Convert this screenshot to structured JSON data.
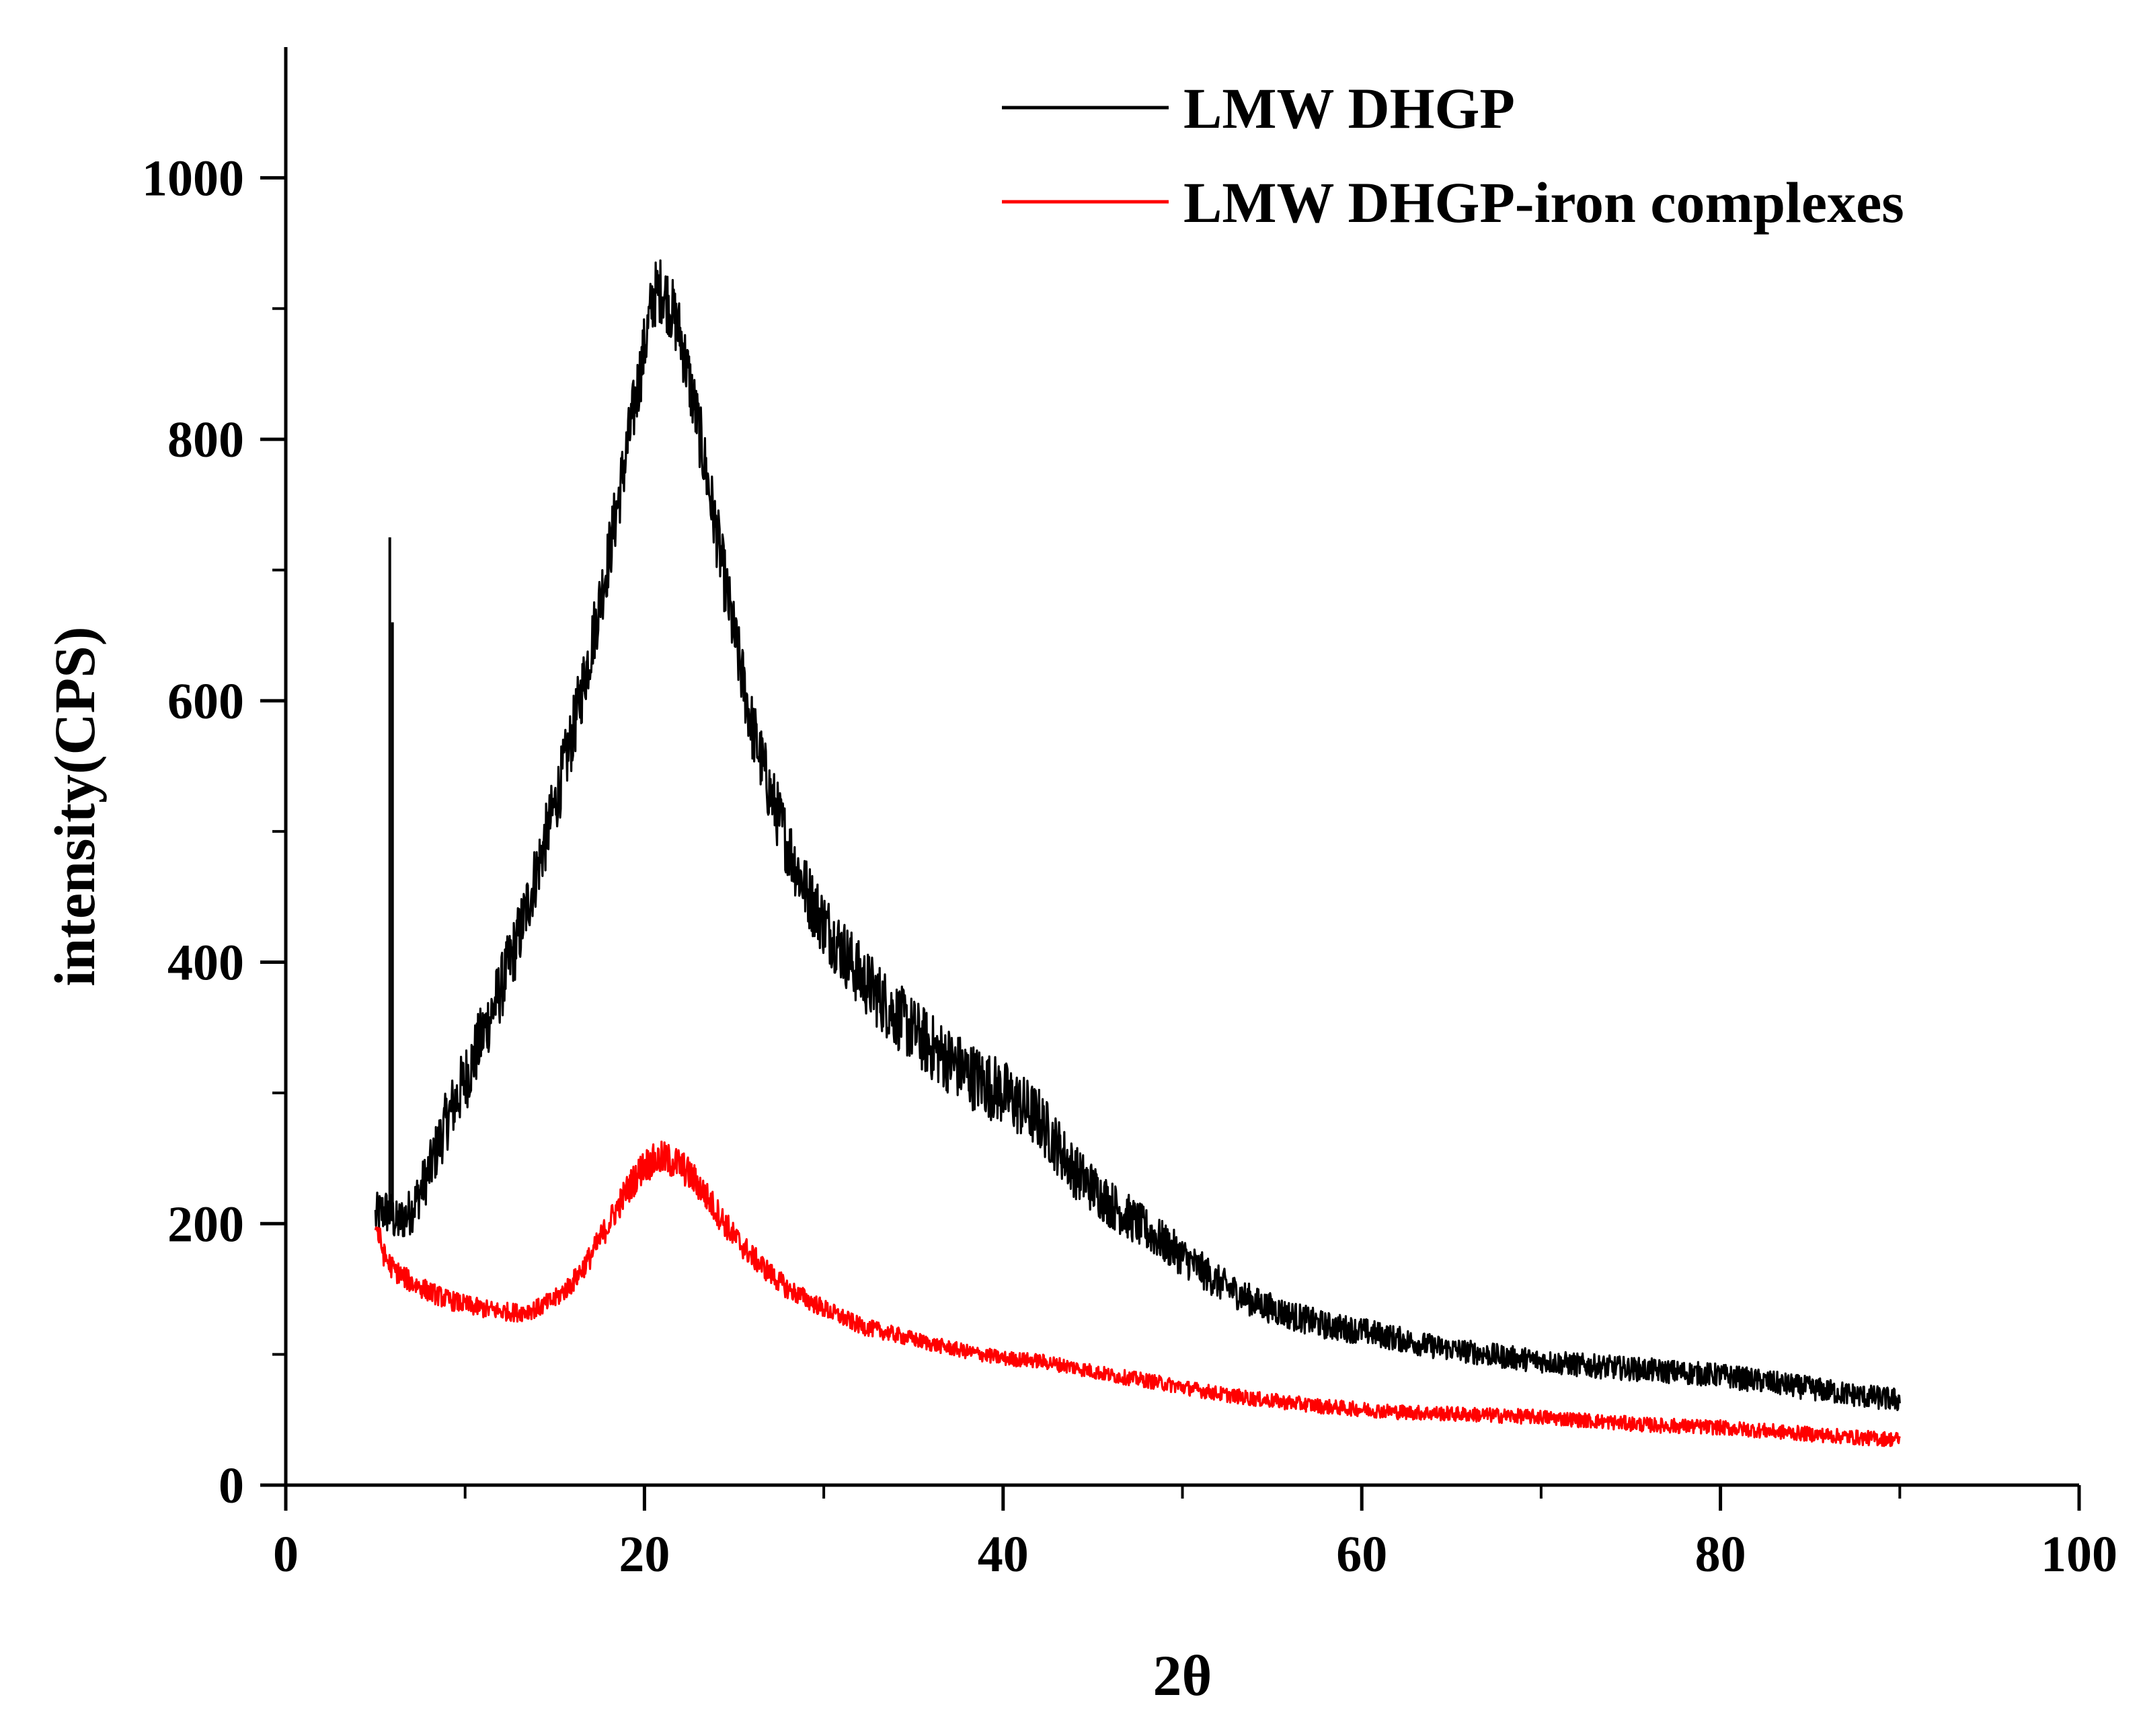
{
  "chart_data": {
    "type": "line",
    "title": "",
    "xlabel": "2θ",
    "ylabel": "intensity(CPS)",
    "xlim": [
      0,
      100
    ],
    "ylim": [
      0,
      1100
    ],
    "x_ticks": [
      0,
      20,
      40,
      60,
      80,
      100
    ],
    "x_tick_labels": [
      "0",
      "20",
      "40",
      "60",
      "80",
      "100"
    ],
    "x_minor_ticks": [
      10,
      30,
      50,
      70,
      90
    ],
    "y_ticks": [
      0,
      200,
      400,
      600,
      800,
      1000
    ],
    "y_tick_labels": [
      "0",
      "200",
      "400",
      "600",
      "800",
      "1000"
    ],
    "y_minor_ticks": [
      100,
      300,
      500,
      700,
      900
    ],
    "grid": false,
    "legend_position": "top-right",
    "series": [
      {
        "name": "LMW DHGP",
        "color": "#000000",
        "noise": 26,
        "x": [
          5,
          5.5,
          5.8,
          6.2,
          7,
          8,
          9,
          10,
          11,
          12,
          13,
          14,
          15,
          16,
          17,
          18,
          19,
          20,
          20.5,
          21,
          21.5,
          22,
          23,
          24,
          25,
          26,
          27,
          28,
          29,
          30,
          32,
          34,
          36,
          38,
          40,
          42,
          44,
          46,
          48,
          50,
          52,
          54,
          56,
          58,
          60,
          62,
          64,
          66,
          68,
          70,
          72,
          74,
          76,
          78,
          80,
          82,
          84,
          86,
          88,
          90
        ],
        "y": [
          205,
          210,
          208,
          200,
          210,
          240,
          280,
          310,
          345,
          380,
          420,
          470,
          520,
          575,
          640,
          710,
          790,
          870,
          910,
          915,
          900,
          880,
          810,
          730,
          650,
          580,
          530,
          490,
          455,
          430,
          390,
          360,
          335,
          315,
          300,
          280,
          240,
          215,
          195,
          175,
          155,
          140,
          130,
          122,
          118,
          112,
          106,
          102,
          98,
          95,
          92,
          90,
          88,
          86,
          84,
          80,
          76,
          72,
          68,
          65
        ],
        "spikes": [
          {
            "x": 5.8,
            "y": 725
          },
          {
            "x": 5.95,
            "y": 660
          }
        ]
      },
      {
        "name": "LMW DHGP-iron complexes",
        "color": "#ff0000",
        "noise": 16,
        "x": [
          5,
          5.5,
          6,
          7,
          8,
          9,
          10,
          11,
          12,
          13,
          14,
          15,
          16,
          17,
          18,
          19,
          20,
          21,
          22,
          23,
          24,
          25,
          26,
          27,
          28,
          30,
          32,
          34,
          36,
          38,
          40,
          42,
          44,
          46,
          48,
          50,
          52,
          54,
          56,
          58,
          60,
          62,
          64,
          66,
          68,
          70,
          72,
          74,
          76,
          78,
          80,
          82,
          84,
          86,
          88,
          90
        ],
        "y": [
          200,
          175,
          165,
          155,
          148,
          142,
          138,
          135,
          133,
          132,
          135,
          142,
          155,
          175,
          200,
          225,
          245,
          250,
          245,
          230,
          210,
          190,
          175,
          162,
          150,
          135,
          122,
          115,
          108,
          102,
          97,
          95,
          90,
          84,
          80,
          75,
          70,
          66,
          63,
          60,
          58,
          56,
          55,
          54,
          53,
          52,
          50,
          48,
          46,
          45,
          44,
          42,
          40,
          38,
          36,
          35
        ]
      }
    ]
  }
}
